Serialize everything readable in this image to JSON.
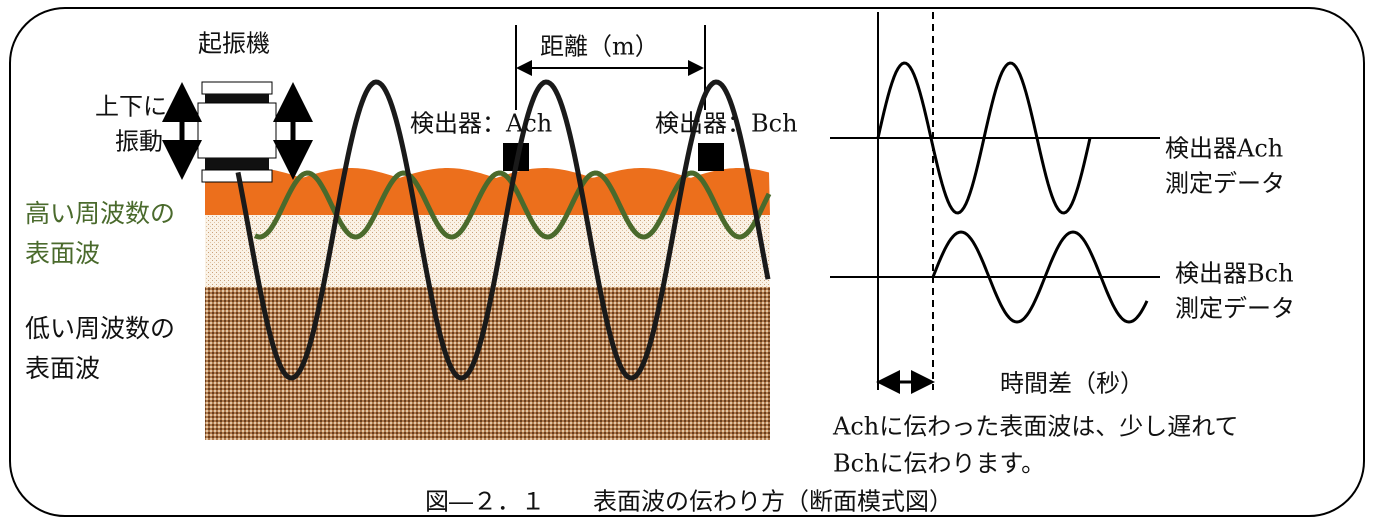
{
  "diagram": {
    "vibrator": "起振機",
    "vibration_note": [
      "上下に",
      "振動"
    ],
    "distance": "距離（m）",
    "detector_a": "検出器：Ach",
    "detector_b": "検出器：Bch",
    "high_frequency": [
      "高い周波数の",
      "表面波"
    ],
    "low_frequency": [
      "低い周波数の",
      "表面波"
    ],
    "ach_data": [
      "検出器Ach",
      "測定データ"
    ],
    "bch_data": [
      "検出器Bch",
      "測定データ"
    ],
    "time_difference": "時間差（秒）",
    "explanation": [
      "Achに伝わった表面波は、少し遅れて",
      "Bchに伝わります。"
    ],
    "caption": "図―２．１　　表面波の伝わり方（断面模式図）"
  }
}
